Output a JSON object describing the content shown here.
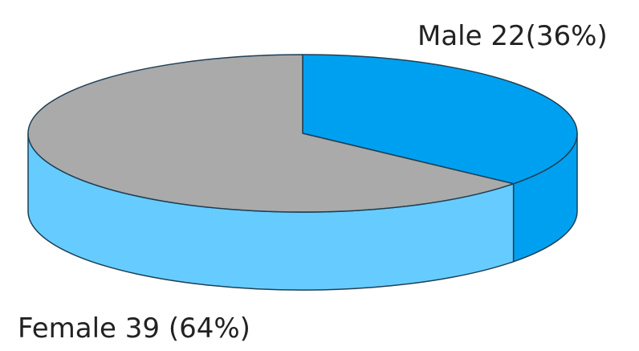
{
  "chart_data": {
    "type": "pie",
    "style": "3d",
    "title": "",
    "slices": [
      {
        "label": "Male 22(36%)",
        "value": 22,
        "percent": 36,
        "color": "#00a0f0",
        "side_color": "#00a0f0"
      },
      {
        "label": "Female 39 (64%)",
        "value": 39,
        "percent": 64,
        "color": "#aaaaaa",
        "side_color": "#66ccff"
      }
    ],
    "outline_color": "#1f3f55"
  }
}
